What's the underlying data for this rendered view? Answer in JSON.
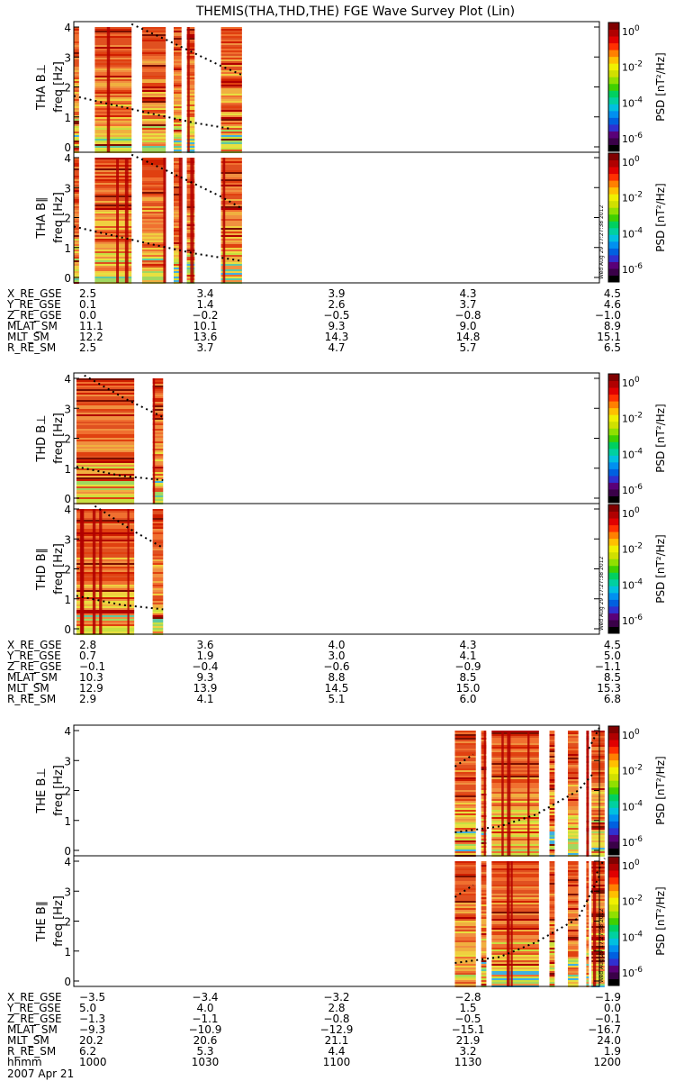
{
  "title": "THEMIS(THA,THD,THE) FGE Wave Survey Plot (Lin)",
  "colorbar": {
    "label": "PSD [nT²/Hz]",
    "exponents": [
      "0",
      "-2",
      "-4",
      "-6"
    ],
    "base": "10"
  },
  "stamp": "Wed Aug 29 17:27:38 2012",
  "footer_date": "2007 Apr 21",
  "chart_data": {
    "type": "heatmap",
    "x_range": [
      1000,
      1200
    ],
    "y_range": [
      0,
      4
    ],
    "y_ticks": [
      "0",
      "1",
      "2",
      "3",
      "4"
    ],
    "z_scale": "log",
    "z_range": [
      1e-06,
      10
    ],
    "groups": [
      {
        "ylabel_freq": "freq [Hz]",
        "panels": [
          {
            "name": "THA B⊥",
            "data_cols": [
              [
                1000,
                1002
              ],
              [
                1008,
                1022
              ],
              [
                1026,
                1035
              ],
              [
                1038,
                1041
              ],
              [
                1043,
                1046
              ],
              [
                1056,
                1064
              ]
            ],
            "dashes": [
              {
                "x": [
                  1000,
                  1030,
                  1046,
                  1060
                ],
                "y": [
                  1.7,
                  1.1,
                  0.8,
                  0.6
                ]
              },
              {
                "x": [
                  1022,
                  1037,
                  1056,
                  1064
                ],
                "y": [
                  4.1,
                  3.5,
                  2.7,
                  2.4
                ]
              }
            ]
          },
          {
            "name": "THA B∥",
            "data_cols": [
              [
                1000,
                1002
              ],
              [
                1008,
                1022
              ],
              [
                1026,
                1035
              ],
              [
                1038,
                1041
              ],
              [
                1043,
                1046
              ],
              [
                1056,
                1064
              ]
            ],
            "dashes": [
              {
                "x": [
                  1000,
                  1030,
                  1046,
                  1064
                ],
                "y": [
                  1.7,
                  1.1,
                  0.8,
                  0.55
                ]
              },
              {
                "x": [
                  1022,
                  1037,
                  1056,
                  1064
                ],
                "y": [
                  4.1,
                  3.5,
                  2.7,
                  2.3
                ]
              }
            ]
          }
        ],
        "ephemeris": {
          "labels": [
            "X_RE_GSE",
            "Y_RE_GSE",
            "Z_RE_GSE",
            "MLAT_SM",
            "MLT_SM",
            "R_RE_SM"
          ],
          "rows": [
            [
              "2.5",
              "3.4",
              "3.9",
              "4.3",
              "4.5"
            ],
            [
              "0.1",
              "1.4",
              "2.6",
              "3.7",
              "4.6"
            ],
            [
              "0.0",
              "−0.2",
              "−0.5",
              "−0.8",
              "−1.0"
            ],
            [
              "11.1",
              "10.1",
              "9.3",
              "9.0",
              "8.9"
            ],
            [
              "12.2",
              "13.6",
              "14.3",
              "14.8",
              "15.1"
            ],
            [
              "2.5",
              "3.7",
              "4.7",
              "5.7",
              "6.5"
            ]
          ]
        }
      },
      {
        "ylabel_freq": "freq [Hz]",
        "panels": [
          {
            "name": "THD B⊥",
            "data_cols": [
              [
                1001,
                1023
              ],
              [
                1030,
                1034
              ]
            ],
            "dashes": [
              {
                "x": [
                  1001,
                  1018,
                  1034
                ],
                "y": [
                  1.05,
                  0.75,
                  0.6
                ]
              },
              {
                "x": [
                  1004,
                  1020,
                  1034
                ],
                "y": [
                  4.1,
                  3.3,
                  2.7
                ]
              }
            ]
          },
          {
            "name": "THD B∥",
            "data_cols": [
              [
                1001,
                1023
              ],
              [
                1030,
                1034
              ]
            ],
            "dashes": [
              {
                "x": [
                  1001,
                  1018,
                  1034
                ],
                "y": [
                  1.1,
                  0.8,
                  0.65
                ]
              },
              {
                "x": [
                  1008,
                  1022,
                  1034
                ],
                "y": [
                  4.1,
                  3.3,
                  2.7
                ]
              }
            ]
          }
        ],
        "ephemeris": {
          "labels": [
            "X_RE_GSE",
            "Y_RE_GSE",
            "Z_RE_GSE",
            "MLAT_SM",
            "MLT_SM",
            "R_RE_SM"
          ],
          "rows": [
            [
              "2.8",
              "3.6",
              "4.0",
              "4.3",
              "4.5"
            ],
            [
              "0.7",
              "1.9",
              "3.0",
              "4.1",
              "5.0"
            ],
            [
              "−0.1",
              "−0.4",
              "−0.6",
              "−0.9",
              "−1.1"
            ],
            [
              "10.3",
              "9.3",
              "8.8",
              "8.5",
              "8.5"
            ],
            [
              "12.9",
              "13.9",
              "14.5",
              "15.0",
              "15.3"
            ],
            [
              "2.9",
              "4.1",
              "5.1",
              "6.0",
              "6.8"
            ]
          ]
        }
      },
      {
        "ylabel_freq": "freq [Hz]",
        "panels": [
          {
            "name": "THE B⊥",
            "data_cols": [
              [
                1145,
                1153
              ],
              [
                1155,
                1157
              ],
              [
                1159,
                1177
              ],
              [
                1181,
                1183
              ],
              [
                1188,
                1192
              ],
              [
                1195,
                1196
              ],
              [
                1197,
                1202
              ]
            ],
            "dashes": [
              {
                "x": [
                  1145,
                  1162,
                  1176,
                  1192,
                  1198
                ],
                "y": [
                  0.6,
                  0.8,
                  1.2,
                  2.0,
                  2.6
                ]
              },
              {
                "x": [
                  1145,
                  1152
                ],
                "y": [
                  2.8,
                  3.2
                ]
              },
              {
                "x": [
                  1196,
                  1200
                ],
                "y": [
                  3.4,
                  4.1
                ]
              }
            ]
          },
          {
            "name": "THE B∥",
            "data_cols": [
              [
                1145,
                1153
              ],
              [
                1155,
                1157
              ],
              [
                1159,
                1177
              ],
              [
                1181,
                1183
              ],
              [
                1188,
                1192
              ],
              [
                1195,
                1196
              ],
              [
                1197,
                1202
              ]
            ],
            "dashes": [
              {
                "x": [
                  1145,
                  1162,
                  1176,
                  1192,
                  1200
                ],
                "y": [
                  0.6,
                  0.8,
                  1.3,
                  2.1,
                  3.5
                ]
              },
              {
                "x": [
                  1145,
                  1152
                ],
                "y": [
                  2.8,
                  3.2
                ]
              },
              {
                "x": [
                  1199,
                  1202
                ],
                "y": [
                  3.6,
                  4.1
                ]
              }
            ]
          }
        ],
        "ephemeris": {
          "labels": [
            "X_RE_GSE",
            "Y_RE_GSE",
            "Z_RE_GSE",
            "MLAT_SM",
            "MLT_SM",
            "R_RE_SM",
            "hhmm"
          ],
          "rows": [
            [
              "−3.5",
              "−3.4",
              "−3.2",
              "−2.8",
              "−1.9"
            ],
            [
              "5.0",
              "4.0",
              "2.8",
              "1.5",
              "0.0"
            ],
            [
              "−1.3",
              "−1.1",
              "−0.8",
              "−0.5",
              "−0.1"
            ],
            [
              "−9.3",
              "−10.9",
              "−12.9",
              "−15.1",
              "−16.7"
            ],
            [
              "20.2",
              "20.6",
              "21.1",
              "21.9",
              "24.0"
            ],
            [
              "6.2",
              "5.3",
              "4.4",
              "3.2",
              "1.9"
            ],
            [
              "1000",
              "1030",
              "1100",
              "1130",
              "1200"
            ]
          ]
        }
      }
    ]
  },
  "palette": {
    "spectrogram": [
      "#7a1000",
      "#b00000",
      "#d02000",
      "#e04010",
      "#e05020",
      "#f07030",
      "#f09040",
      "#f0b040",
      "#f0d040",
      "#e8e040",
      "#c8e040",
      "#a0d860",
      "#60c8a0",
      "#40b0e0"
    ],
    "colorbar": [
      "#000000",
      "#3a0048",
      "#5a0078",
      "#3030d0",
      "#0060e0",
      "#0090f0",
      "#00c0e0",
      "#00d0a0",
      "#00d060",
      "#40d000",
      "#90e000",
      "#d0e000",
      "#f0f000",
      "#ffc000",
      "#ff8000",
      "#ff3000",
      "#e00000",
      "#b00000",
      "#800000"
    ]
  }
}
